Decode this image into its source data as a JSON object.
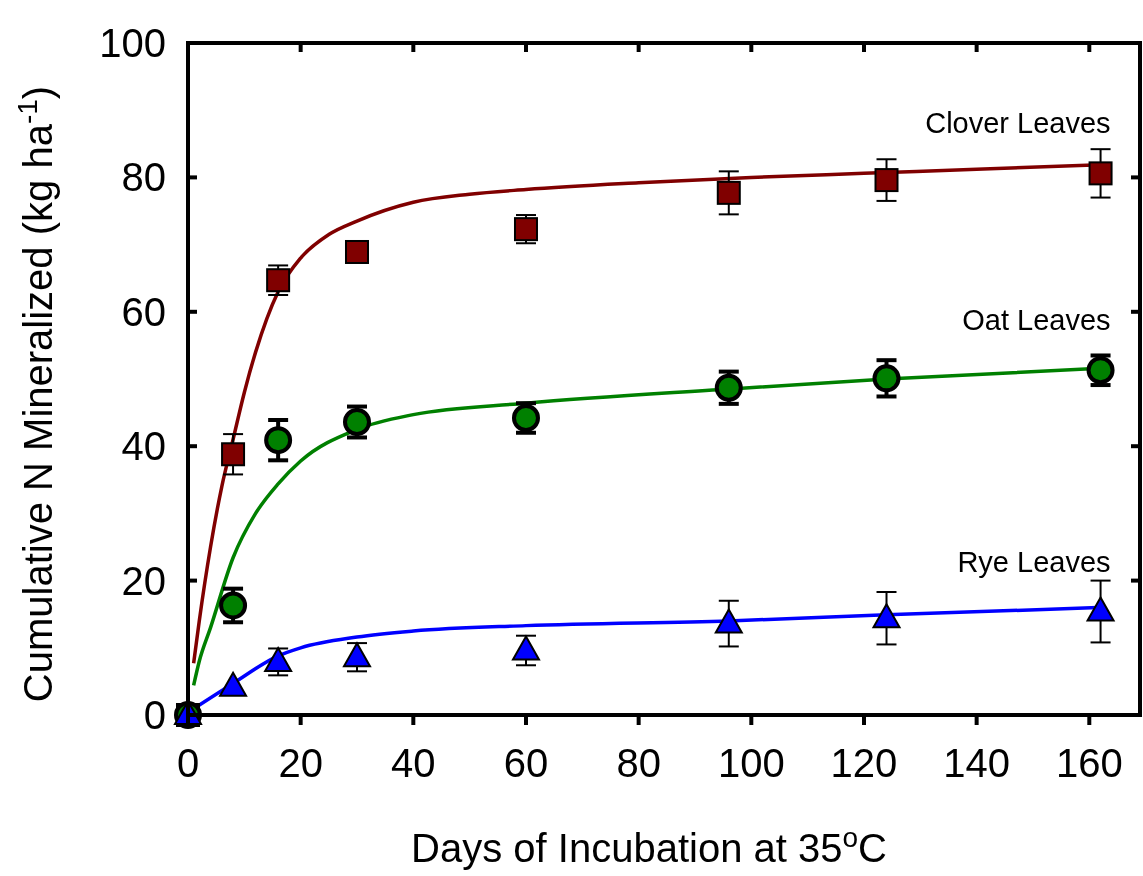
{
  "chart_data": {
    "type": "scatter",
    "xlabel": "Days of Incubation at 35$^{o}$C",
    "ylabel": "Cumulative N Mineralized (kg ha$^{-1}$)",
    "xlim": [
      0,
      169
    ],
    "ylim": [
      0,
      100
    ],
    "xticks": [
      0,
      20,
      40,
      60,
      80,
      100,
      120,
      140,
      160
    ],
    "yticks": [
      0,
      20,
      40,
      60,
      80,
      100
    ],
    "grid": false,
    "legend": "right",
    "series": [
      {
        "name": "Clover Leaves",
        "marker": "square",
        "color": "#800000",
        "x": [
          0,
          8,
          16,
          30,
          60,
          96,
          124,
          162
        ],
        "values": [
          0,
          38.8,
          64.7,
          68.9,
          72.3,
          77.7,
          79.6,
          80.6
        ],
        "errors": [
          null,
          3,
          2.2,
          null,
          2.1,
          3.2,
          3.1,
          3.6
        ]
      },
      {
        "name": "Oat Leaves",
        "marker": "circle",
        "color": "#008000",
        "x": [
          0,
          8,
          16,
          30,
          60,
          96,
          124,
          162
        ],
        "values": [
          0,
          16.3,
          40.9,
          43.6,
          44.2,
          48.7,
          50.1,
          51.3
        ],
        "errors": [
          null,
          2.5,
          3,
          2.3,
          2.2,
          2.4,
          2.7,
          2.2
        ]
      },
      {
        "name": "Rye Leaves",
        "marker": "triangle",
        "color": "#0000ff",
        "x": [
          0,
          8,
          16,
          30,
          60,
          96,
          124,
          162
        ],
        "values": [
          0,
          4.2,
          7.9,
          8.6,
          9.6,
          13.6,
          14.4,
          15.4
        ],
        "errors": [
          null,
          null,
          2,
          2.1,
          2.2,
          3.4,
          3.9,
          4.6
        ]
      },
      {
        "type": "line",
        "color": "#800000",
        "x": [
          1,
          2,
          4,
          6,
          8,
          10,
          12,
          16,
          20,
          25,
          30,
          40,
          50,
          60,
          80,
          100,
          120,
          140,
          162
        ],
        "values": [
          7.7,
          14,
          25,
          34,
          41,
          48,
          54,
          63,
          68,
          71.5,
          73.5,
          76.3,
          77.5,
          78.2,
          79.2,
          80,
          80.6,
          81.2,
          81.9
        ]
      },
      {
        "type": "line",
        "color": "#008000",
        "x": [
          1,
          2,
          4,
          8,
          12,
          16,
          20,
          30,
          40,
          60,
          96,
          124,
          162
        ],
        "values": [
          4.4,
          8,
          13,
          23.4,
          30,
          34.4,
          37.8,
          42.5,
          44.7,
          46.4,
          48.5,
          50,
          51.6
        ]
      },
      {
        "type": "line",
        "color": "#0000ff",
        "x": [
          0,
          8,
          16,
          20,
          30,
          40,
          60,
          96,
          124,
          162
        ],
        "values": [
          0.4,
          4.7,
          8.8,
          10,
          11.6,
          12.5,
          13.3,
          14,
          14.9,
          16
        ]
      }
    ]
  }
}
